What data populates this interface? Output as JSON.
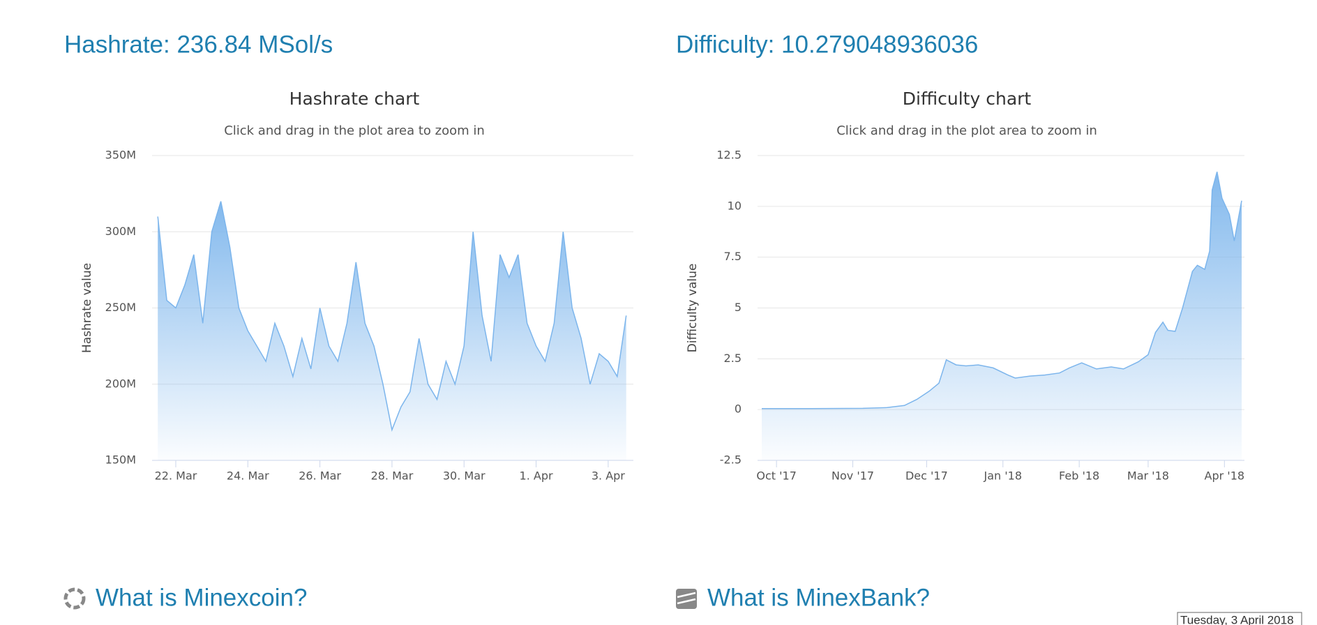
{
  "page": {
    "hashrate_heading": "Hashrate: 236.84 MSol/s",
    "difficulty_heading": "Difficulty: 10.279048936036",
    "sections": [
      "What is Minexcoin?",
      "What is MinexBank?"
    ],
    "tooltip": "Tuesday, 3 April 2018"
  },
  "chart_data": [
    {
      "type": "area",
      "title": "Hashrate chart",
      "subtitle": "Click and drag in the plot area to zoom in",
      "y_label": "Hashrate value",
      "color": "#7cb5ec",
      "xlim": [
        "2018-03-21T11:00",
        "2018-04-03T14:00"
      ],
      "xticks": [
        {
          "value": "2018-03-22T00:00",
          "label": "22. Mar"
        },
        {
          "value": "2018-03-24T00:00",
          "label": "24. Mar"
        },
        {
          "value": "2018-03-26T00:00",
          "label": "26. Mar"
        },
        {
          "value": "2018-03-28T00:00",
          "label": "28. Mar"
        },
        {
          "value": "2018-03-30T00:00",
          "label": "30. Mar"
        },
        {
          "value": "2018-04-01T00:00",
          "label": "1. Apr"
        },
        {
          "value": "2018-04-03T00:00",
          "label": "3. Apr"
        }
      ],
      "ylim": [
        150,
        350
      ],
      "yticks": [
        {
          "value": 150,
          "label": "150M"
        },
        {
          "value": 200,
          "label": "200M"
        },
        {
          "value": 250,
          "label": "250M"
        },
        {
          "value": 300,
          "label": "300M"
        },
        {
          "value": 350,
          "label": "350M"
        }
      ],
      "grid": true,
      "x": [
        "2018-03-21T12:00",
        "2018-03-21T18:00",
        "2018-03-22T00:00",
        "2018-03-22T06:00",
        "2018-03-22T12:00",
        "2018-03-22T18:00",
        "2018-03-23T00:00",
        "2018-03-23T06:00",
        "2018-03-23T12:00",
        "2018-03-23T18:00",
        "2018-03-24T00:00",
        "2018-03-24T06:00",
        "2018-03-24T12:00",
        "2018-03-24T18:00",
        "2018-03-25T00:00",
        "2018-03-25T06:00",
        "2018-03-25T12:00",
        "2018-03-25T18:00",
        "2018-03-26T00:00",
        "2018-03-26T06:00",
        "2018-03-26T12:00",
        "2018-03-26T18:00",
        "2018-03-27T00:00",
        "2018-03-27T06:00",
        "2018-03-27T12:00",
        "2018-03-27T18:00",
        "2018-03-28T00:00",
        "2018-03-28T06:00",
        "2018-03-28T12:00",
        "2018-03-28T18:00",
        "2018-03-29T00:00",
        "2018-03-29T06:00",
        "2018-03-29T12:00",
        "2018-03-29T18:00",
        "2018-03-30T00:00",
        "2018-03-30T06:00",
        "2018-03-30T12:00",
        "2018-03-30T18:00",
        "2018-03-31T00:00",
        "2018-03-31T06:00",
        "2018-03-31T12:00",
        "2018-03-31T18:00",
        "2018-04-01T00:00",
        "2018-04-01T06:00",
        "2018-04-01T12:00",
        "2018-04-01T18:00",
        "2018-04-02T00:00",
        "2018-04-02T06:00",
        "2018-04-02T12:00",
        "2018-04-02T18:00",
        "2018-04-03T00:00",
        "2018-04-03T06:00",
        "2018-04-03T12:00"
      ],
      "values": [
        310,
        255,
        250,
        265,
        285,
        240,
        300,
        320,
        290,
        250,
        235,
        225,
        215,
        240,
        225,
        205,
        230,
        210,
        250,
        225,
        215,
        240,
        280,
        240,
        225,
        200,
        170,
        185,
        195,
        230,
        200,
        190,
        215,
        200,
        225,
        300,
        245,
        215,
        285,
        270,
        285,
        240,
        225,
        215,
        240,
        300,
        250,
        230,
        200,
        220,
        215,
        205,
        245
      ]
    },
    {
      "type": "area",
      "title": "Difficulty chart",
      "subtitle": "Click and drag in the plot area to zoom in",
      "y_label": "Difficulty value",
      "color": "#7cb5ec",
      "xlim": [
        "2017-09-25",
        "2018-04-08"
      ],
      "xticks": [
        {
          "value": "2017-10-01",
          "label": "Oct '17"
        },
        {
          "value": "2017-11-01",
          "label": "Nov '17"
        },
        {
          "value": "2017-12-01",
          "label": "Dec '17"
        },
        {
          "value": "2018-01-01",
          "label": "Jan '18"
        },
        {
          "value": "2018-02-01",
          "label": "Feb '18"
        },
        {
          "value": "2018-03-01",
          "label": "Mar '18"
        },
        {
          "value": "2018-04-01",
          "label": "Apr '18"
        }
      ],
      "ylim": [
        -2.5,
        12.5
      ],
      "yticks": [
        -2.5,
        0,
        2.5,
        5,
        7.5,
        10,
        12.5
      ],
      "grid": true,
      "x": [
        "2017-09-25",
        "2017-10-15",
        "2017-11-05",
        "2017-11-15",
        "2017-11-22",
        "2017-11-27",
        "2017-12-02",
        "2017-12-06",
        "2017-12-09",
        "2017-12-13",
        "2017-12-17",
        "2017-12-22",
        "2017-12-28",
        "2018-01-03",
        "2018-01-06",
        "2018-01-12",
        "2018-01-18",
        "2018-01-24",
        "2018-01-28",
        "2018-02-02",
        "2018-02-08",
        "2018-02-14",
        "2018-02-19",
        "2018-02-25",
        "2018-03-01",
        "2018-03-04",
        "2018-03-07",
        "2018-03-09",
        "2018-03-12",
        "2018-03-15",
        "2018-03-19",
        "2018-03-21",
        "2018-03-24",
        "2018-03-26",
        "2018-03-27",
        "2018-03-29",
        "2018-03-31",
        "2018-04-03",
        "2018-04-05",
        "2018-04-08"
      ],
      "values": [
        0.05,
        0.05,
        0.06,
        0.1,
        0.2,
        0.5,
        0.9,
        1.3,
        2.45,
        2.2,
        2.15,
        2.2,
        2.05,
        1.7,
        1.55,
        1.65,
        1.7,
        1.8,
        2.05,
        2.3,
        2.0,
        2.1,
        2.0,
        2.35,
        2.7,
        3.8,
        4.3,
        3.9,
        3.85,
        5.0,
        6.8,
        7.1,
        6.9,
        7.8,
        10.8,
        11.7,
        10.4,
        9.6,
        8.3,
        10.28
      ]
    }
  ]
}
